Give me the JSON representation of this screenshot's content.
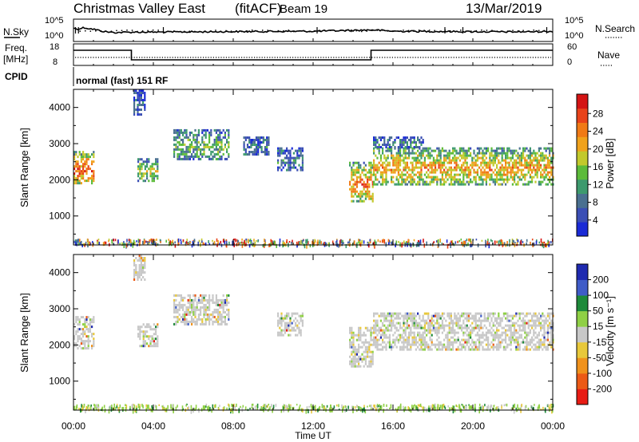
{
  "header": {
    "station": "Christmas Valley East",
    "mode": "(fitACF)",
    "beam": "Beam 19",
    "date": "13/Mar/2019"
  },
  "labels": {
    "nsky": "N.Sky",
    "nsearch": "N.Search",
    "freq": "Freq.",
    "mhz": "[MHz]",
    "nave": "Nave",
    "cpid": "CPID",
    "cpid_value": "normal (fast) 151 RF"
  },
  "chart_data": [
    {
      "type": "line",
      "name": "noise panel",
      "y_left_ticks": [
        "10^5",
        "10^0"
      ],
      "y_right_ticks": [
        "10^5",
        "10^0"
      ],
      "x_hours": [
        0,
        0.2,
        0.5,
        1.0,
        1.5,
        2.0,
        3.0,
        4.0,
        6.0,
        8.0,
        10.0,
        12.0,
        14.0,
        15.0,
        16.0,
        18.0,
        20.0,
        22.0,
        24.0
      ],
      "nsky_level": [
        0.6,
        0.55,
        0.62,
        0.55,
        0.45,
        0.4,
        0.42,
        0.42,
        0.43,
        0.44,
        0.45,
        0.46,
        0.5,
        0.52,
        0.46,
        0.45,
        0.44,
        0.43,
        0.45
      ]
    },
    {
      "type": "line",
      "name": "frequency and nave panel",
      "y_left_ticks": [
        "18",
        "8"
      ],
      "y_right_ticks": [
        "60",
        "0"
      ],
      "freq_steps": [
        {
          "start": 0.0,
          "end": 2.9,
          "level": "high"
        },
        {
          "start": 2.9,
          "end": 14.9,
          "level": "low"
        },
        {
          "start": 14.9,
          "end": 24.0,
          "level": "high"
        }
      ]
    },
    {
      "type": "heatmap",
      "name": "power",
      "ylabel": "Slant Range [km]",
      "y_ticks": [
        1000,
        2000,
        3000,
        4000
      ],
      "ylim": [
        200,
        4500
      ],
      "colorbar_label": "Power [dB]",
      "colorbar_ticks": [
        "4",
        "8",
        "12",
        "16",
        "20",
        "24",
        "28"
      ],
      "colorbar_colors": [
        "#1a2bd6",
        "#3b4fb5",
        "#4a7090",
        "#3d9a6e",
        "#5cbb3a",
        "#c2c92c",
        "#f0a21c",
        "#f07a16",
        "#e8431a",
        "#d41414"
      ],
      "echo_regions": [
        {
          "x0": 0.0,
          "x1": 1.0,
          "r0": 1900,
          "r1": 2800,
          "intensity": 0.85
        },
        {
          "x0": 3.0,
          "x1": 3.6,
          "r0": 3800,
          "r1": 4500,
          "intensity": 0.2
        },
        {
          "x0": 3.2,
          "x1": 4.2,
          "r0": 2000,
          "r1": 2600,
          "intensity": 0.55
        },
        {
          "x0": 5.0,
          "x1": 7.8,
          "r0": 2600,
          "r1": 3400,
          "intensity": 0.45
        },
        {
          "x0": 10.2,
          "x1": 11.5,
          "r0": 2300,
          "r1": 2900,
          "intensity": 0.3
        },
        {
          "x0": 8.5,
          "x1": 9.8,
          "r0": 2700,
          "r1": 3200,
          "intensity": 0.25
        },
        {
          "x0": 13.8,
          "x1": 15.0,
          "r0": 1400,
          "r1": 2500,
          "intensity": 0.75
        },
        {
          "x0": 15.0,
          "x1": 24.0,
          "r0": 1900,
          "r1": 2900,
          "intensity": 0.7
        },
        {
          "x0": 15.0,
          "x1": 17.5,
          "r0": 2900,
          "r1": 3200,
          "intensity": 0.3
        }
      ]
    },
    {
      "type": "heatmap",
      "name": "velocity",
      "ylabel": "Slant Range [km]",
      "y_ticks": [
        1000,
        2000,
        3000,
        4000
      ],
      "ylim": [
        200,
        4500
      ],
      "colorbar_label": "Velocity [m s⁻¹]",
      "colorbar_ticks": [
        "200",
        "100",
        "50",
        "15",
        "-15",
        "-50",
        "-100",
        "-200"
      ],
      "colorbar_colors": [
        "#1f2ab0",
        "#3f5cc8",
        "#1e8a3a",
        "#8fd045",
        "#c8c8c8",
        "#e8c83a",
        "#f0921c",
        "#ec5a16",
        "#e81c14"
      ],
      "echo_regions": [
        {
          "x0": 0.0,
          "x1": 1.0,
          "r0": 1900,
          "r1": 2800,
          "intensity": 0.5
        },
        {
          "x0": 3.0,
          "x1": 3.6,
          "r0": 3800,
          "r1": 4500,
          "intensity": 0.6
        },
        {
          "x0": 3.2,
          "x1": 4.2,
          "r0": 2000,
          "r1": 2600,
          "intensity": 0.5
        },
        {
          "x0": 5.0,
          "x1": 7.8,
          "r0": 2600,
          "r1": 3400,
          "intensity": 0.55
        },
        {
          "x0": 10.2,
          "x1": 11.5,
          "r0": 2300,
          "r1": 2900,
          "intensity": 0.5
        },
        {
          "x0": 13.8,
          "x1": 15.0,
          "r0": 1400,
          "r1": 2500,
          "intensity": 0.45
        },
        {
          "x0": 15.0,
          "x1": 24.0,
          "r0": 1900,
          "r1": 2900,
          "intensity": 0.5
        }
      ]
    }
  ],
  "x_axis": {
    "xlabel": "Time UT",
    "ticks": [
      "00:00",
      "04:00",
      "08:00",
      "12:00",
      "16:00",
      "20:00",
      "00:00"
    ]
  }
}
